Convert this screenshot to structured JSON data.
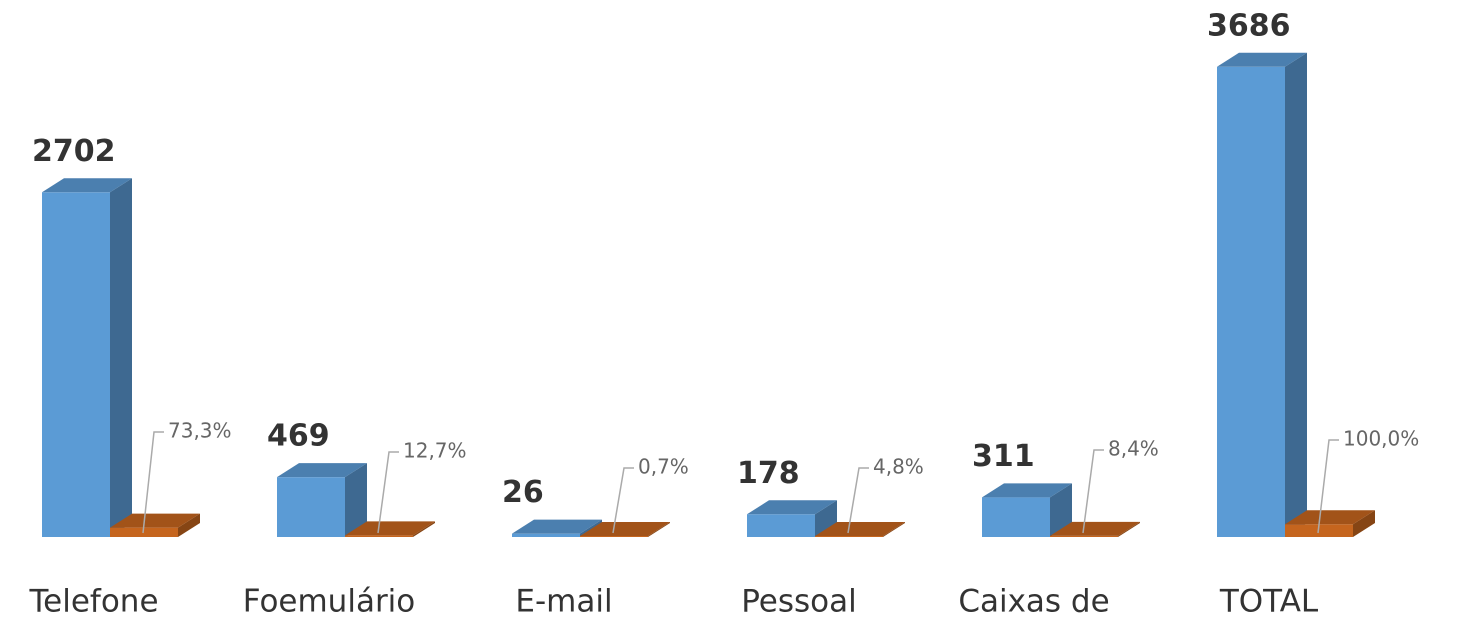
{
  "chart_data": {
    "type": "bar3d",
    "categories": [
      "Telefone",
      "Foemulário",
      "E-mail",
      "Pessoal",
      "Caixas de",
      "TOTAL"
    ],
    "series": [
      {
        "color": "#5b9bd5",
        "values": [
          2702,
          469,
          26,
          178,
          311,
          3686
        ]
      },
      {
        "color": "#c5651e",
        "values": [
          73.3,
          12.7,
          0.7,
          4.8,
          8.4,
          100.0
        ],
        "value_labels": [
          "73,3%",
          "12,7%",
          "0,7%",
          "4,8%",
          "8,4%",
          "100,0%"
        ]
      }
    ],
    "ylim": [
      0,
      3700
    ]
  }
}
